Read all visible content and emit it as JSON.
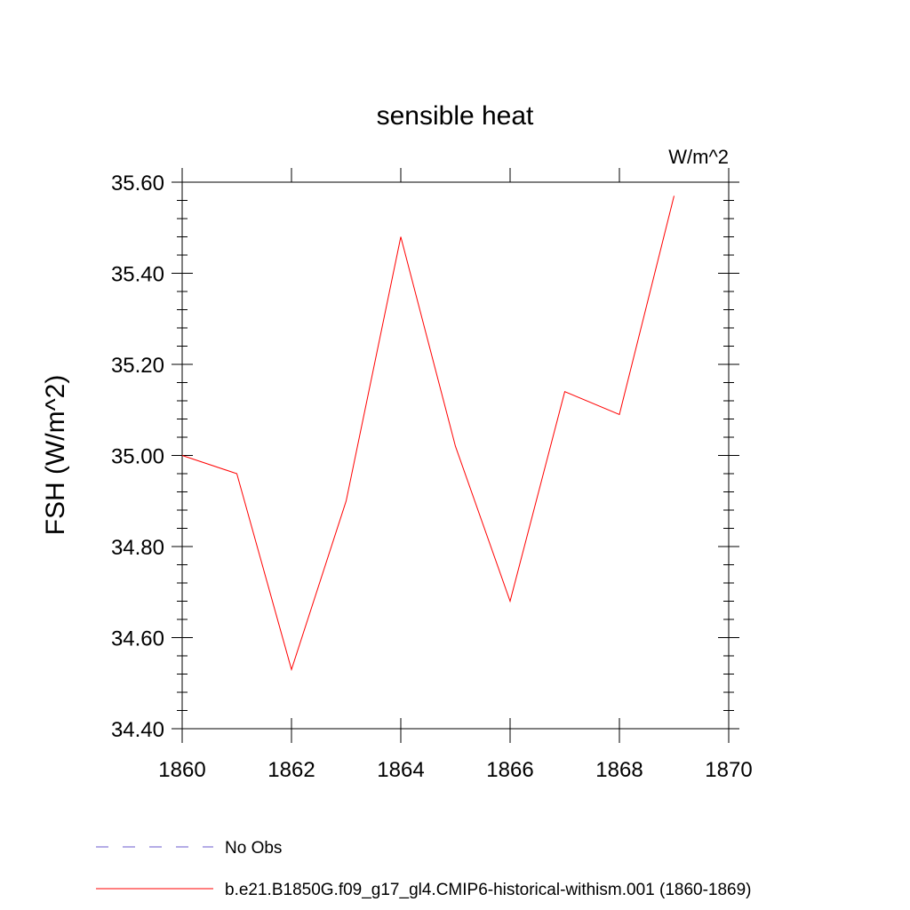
{
  "chart_data": {
    "type": "line",
    "title": "sensible heat",
    "units_label": "W/m^2",
    "xlabel": "",
    "ylabel": "FSH  (W/m^2)",
    "xlim": [
      1860,
      1870
    ],
    "ylim": [
      34.4,
      35.6
    ],
    "x_ticks": [
      1860,
      1862,
      1864,
      1866,
      1868,
      1870
    ],
    "x_tick_labels": [
      "1860",
      "1862",
      "1864",
      "1866",
      "1868",
      "1870"
    ],
    "y_ticks": [
      34.4,
      34.6,
      34.8,
      35.0,
      35.2,
      35.4,
      35.6
    ],
    "y_tick_labels": [
      "34.40",
      "34.60",
      "34.80",
      "35.00",
      "35.20",
      "35.40",
      "35.60"
    ],
    "grid": false,
    "legend_position": "bottom",
    "series": [
      {
        "name": "b.e21.B1850G.f09_g17_gl4.CMIP6-historical-withism.001 (1860-1869)",
        "color": "#ff0000",
        "style": "solid",
        "x": [
          1860,
          1861,
          1862,
          1863,
          1864,
          1865,
          1866,
          1867,
          1868,
          1869
        ],
        "y": [
          35.0,
          34.96,
          34.53,
          34.9,
          35.48,
          35.02,
          34.68,
          35.14,
          35.09,
          35.57
        ]
      }
    ],
    "legend": [
      {
        "label": "No Obs",
        "color": "#6a5acd",
        "style": "dashed"
      },
      {
        "label": "b.e21.B1850G.f09_g17_gl4.CMIP6-historical-withism.001 (1860-1869)",
        "color": "#ff0000",
        "style": "solid"
      }
    ]
  }
}
